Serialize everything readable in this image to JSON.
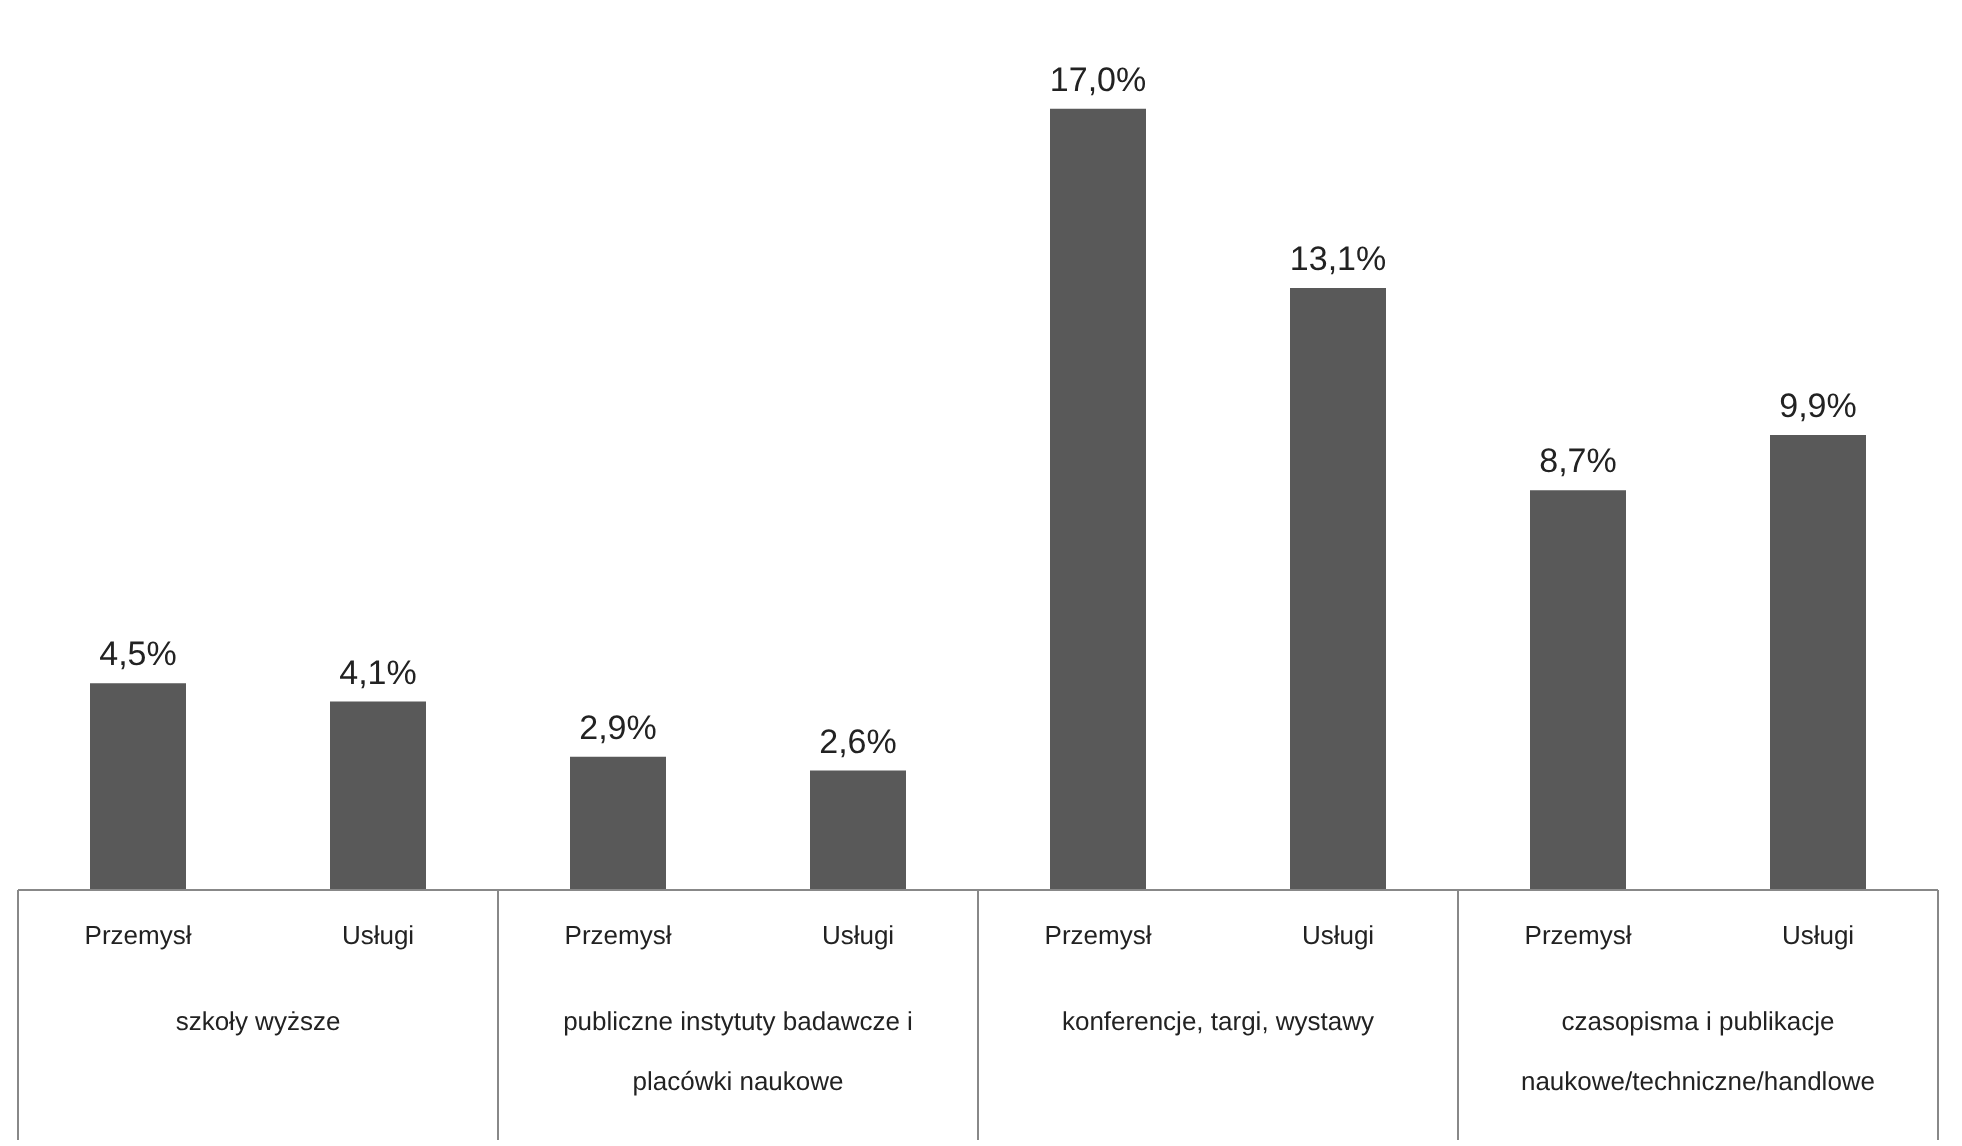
{
  "chart_data": {
    "type": "bar",
    "categories": [
      "szkoły wyższe",
      "publiczne instytuty badawcze i placówki naukowe",
      "konferencje, targi, wystawy",
      "czasopisma i publikacje naukowe/techniczne/handlowe"
    ],
    "series": [
      {
        "name": "Przemysł",
        "color": "#595959",
        "values": [
          4.5,
          2.9,
          17.0,
          8.7
        ],
        "value_labels": [
          "4,5%",
          "2,9%",
          "17,0%",
          "8,7%"
        ]
      },
      {
        "name": "Usługi",
        "color": "#595959",
        "values": [
          4.1,
          2.6,
          13.1,
          9.9
        ],
        "value_labels": [
          "4,1%",
          "2,6%",
          "13,1%",
          "9,9%"
        ]
      }
    ],
    "grid": false
  }
}
